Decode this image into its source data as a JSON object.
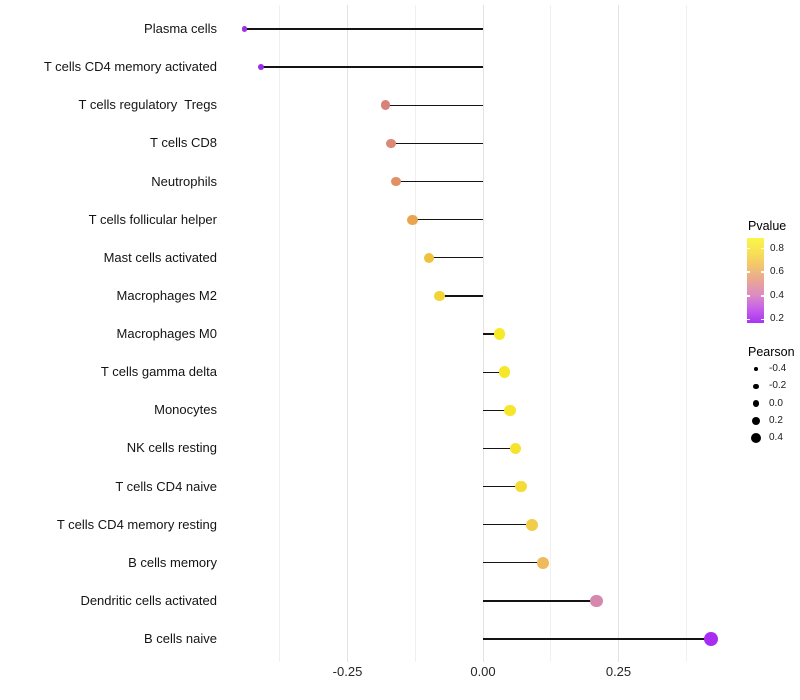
{
  "chart_data": {
    "type": "scatter",
    "subtype": "lollipop",
    "title": "",
    "xlabel": "",
    "ylabel": "",
    "grid": "vertical-only",
    "background": "#ffffff",
    "stem_color": "#141414",
    "xlim": [
      -0.49,
      0.45
    ],
    "x_ticks": [
      {
        "value": -0.25,
        "label": "-0.25"
      },
      {
        "value": 0.0,
        "label": "0.00"
      },
      {
        "value": 0.25,
        "label": "0.25"
      }
    ],
    "x_minor_gridlines": [
      -0.375,
      -0.125,
      0.125,
      0.375
    ],
    "rows": [
      {
        "label": "Plasma cells",
        "pearson": -0.44,
        "color": "#9D2FE4"
      },
      {
        "label": "T cells CD4 memory activated",
        "pearson": -0.41,
        "color": "#9A2BE2"
      },
      {
        "label": "T cells regulatory  Tregs",
        "pearson": -0.18,
        "color": "#D8827B"
      },
      {
        "label": "T cells CD8",
        "pearson": -0.17,
        "color": "#DC8878"
      },
      {
        "label": "Neutrophils",
        "pearson": -0.16,
        "color": "#E29167"
      },
      {
        "label": "T cells follicular helper",
        "pearson": -0.13,
        "color": "#EAA44F"
      },
      {
        "label": "Mast cells activated",
        "pearson": -0.1,
        "color": "#F0C23C"
      },
      {
        "label": "Macrophages M2",
        "pearson": -0.08,
        "color": "#F2D434"
      },
      {
        "label": "Macrophages M0",
        "pearson": 0.03,
        "color": "#F7E926"
      },
      {
        "label": "T cells gamma delta",
        "pearson": 0.04,
        "color": "#F6E72A"
      },
      {
        "label": "Monocytes",
        "pearson": 0.05,
        "color": "#F5E52C"
      },
      {
        "label": "NK cells resting",
        "pearson": 0.06,
        "color": "#F5E32E"
      },
      {
        "label": "T cells CD4 naive",
        "pearson": 0.07,
        "color": "#F4DC38"
      },
      {
        "label": "T cells CD4 memory resting",
        "pearson": 0.09,
        "color": "#F1CE4A"
      },
      {
        "label": "B cells memory",
        "pearson": 0.11,
        "color": "#EFB95E"
      },
      {
        "label": "Dendritic cells activated",
        "pearson": 0.21,
        "color": "#D687AE"
      },
      {
        "label": "B cells naive",
        "pearson": 0.42,
        "color": "#A92DF0"
      }
    ],
    "legends": {
      "pvalue": {
        "title": "Pvalue",
        "domain_top": 0.89,
        "domain_bottom": 0.17,
        "ticks": [
          {
            "value": 0.8,
            "label": "0.8"
          },
          {
            "value": 0.6,
            "label": "0.6"
          },
          {
            "value": 0.4,
            "label": "0.4"
          },
          {
            "value": 0.2,
            "label": "0.2"
          }
        ],
        "gradient_top_to_bottom": [
          "#FBF549",
          "#F8E154",
          "#F2C46E",
          "#E9A694",
          "#DC8DC3",
          "#C75FEA",
          "#A834F2"
        ]
      },
      "pearson": {
        "title": "Pearson",
        "items": [
          {
            "value": -0.4,
            "label": "-0.4"
          },
          {
            "value": -0.2,
            "label": "-0.2"
          },
          {
            "value": 0.0,
            "label": "0.0"
          },
          {
            "value": 0.2,
            "label": "0.2"
          },
          {
            "value": 0.4,
            "label": "0.4"
          }
        ]
      }
    }
  }
}
